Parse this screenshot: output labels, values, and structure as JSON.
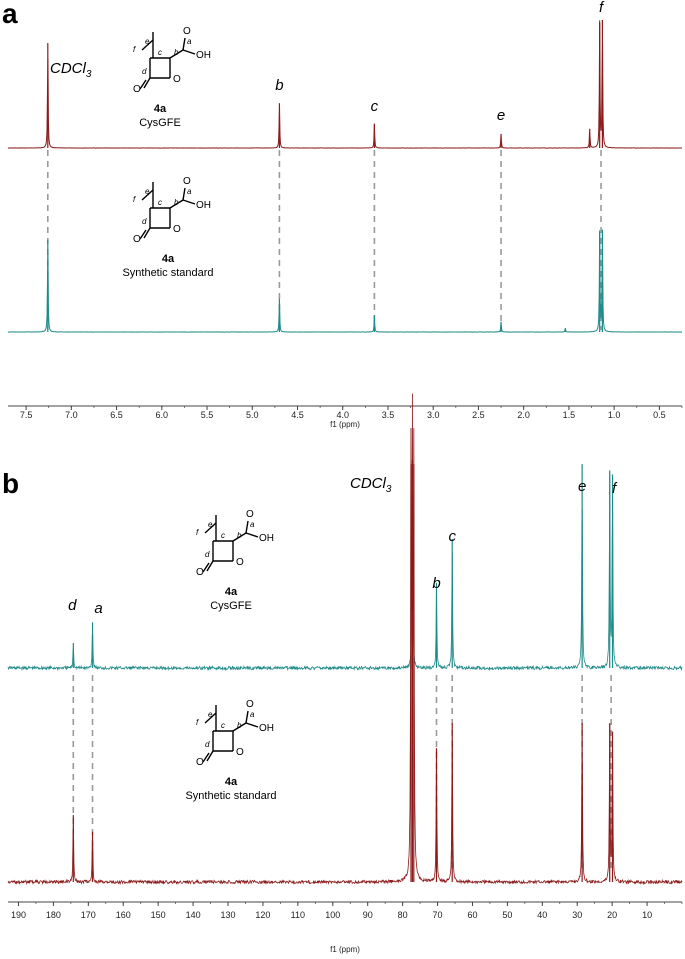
{
  "colors": {
    "top": "#8b1a1a",
    "bottom": "#1f8a8a",
    "guide": "#9a9a9a"
  },
  "chart_data": [
    {
      "panel": "a",
      "type": "line",
      "xlabel": "f1 (ppm)",
      "xlim": [
        7.7,
        0.25
      ],
      "x_ticks": [
        "7.5",
        "7.0",
        "6.5",
        "6.0",
        "5.5",
        "5.0",
        "4.5",
        "4.0",
        "3.5",
        "3.0",
        "2.5",
        "2.0",
        "1.5",
        "1.0",
        "0.5"
      ],
      "solvent_label": "CDCl",
      "solvent_subscript": "3",
      "series": [
        {
          "name": "CysGFE",
          "compound": "4a",
          "peaks": [
            {
              "ppm": 7.26,
              "height": 0.82
            },
            {
              "ppm": 4.7,
              "height": 0.35
            },
            {
              "ppm": 3.65,
              "height": 0.19
            },
            {
              "ppm": 2.25,
              "height": 0.11
            },
            {
              "ppm": 1.27,
              "height": 0.15
            },
            {
              "ppm": 1.16,
              "height": 0.98
            },
            {
              "ppm": 1.13,
              "height": 1.0
            }
          ]
        },
        {
          "name": "Synthetic standard",
          "compound": "4a",
          "peaks": [
            {
              "ppm": 7.26,
              "height": 0.72
            },
            {
              "ppm": 4.7,
              "height": 0.26
            },
            {
              "ppm": 3.65,
              "height": 0.13
            },
            {
              "ppm": 2.25,
              "height": 0.08
            },
            {
              "ppm": 1.54,
              "height": 0.03
            },
            {
              "ppm": 1.16,
              "height": 0.78
            },
            {
              "ppm": 1.13,
              "height": 0.8
            }
          ]
        }
      ],
      "annotations": [
        {
          "text": "b",
          "ppm": 4.7
        },
        {
          "text": "c",
          "ppm": 3.65
        },
        {
          "text": "e",
          "ppm": 2.25
        },
        {
          "text": "f",
          "ppm": 1.145
        }
      ]
    },
    {
      "panel": "b",
      "type": "line",
      "xlabel": "f1 (ppm)",
      "xlim": [
        193,
        0
      ],
      "x_ticks": [
        "190",
        "180",
        "170",
        "160",
        "150",
        "140",
        "130",
        "120",
        "110",
        "100",
        "90",
        "80",
        "70",
        "60",
        "50",
        "40",
        "30",
        "20",
        "10"
      ],
      "solvent_label": "CDCl",
      "solvent_subscript": "3",
      "series": [
        {
          "name": "CysGFE",
          "compound": "4a",
          "peaks": [
            {
              "ppm": 174.3,
              "height": 0.12
            },
            {
              "ppm": 168.8,
              "height": 0.22
            },
            {
              "ppm": 77.2,
              "height": 1.0
            },
            {
              "ppm": 70.3,
              "height": 0.41
            },
            {
              "ppm": 65.8,
              "height": 0.62
            },
            {
              "ppm": 28.6,
              "height": 0.98
            },
            {
              "ppm": 20.7,
              "height": 0.95
            },
            {
              "ppm": 19.9,
              "height": 0.93
            }
          ]
        },
        {
          "name": "Synthetic standard",
          "compound": "4a",
          "peaks": [
            {
              "ppm": 174.3,
              "height": 0.16
            },
            {
              "ppm": 168.8,
              "height": 0.12
            },
            {
              "ppm": 77.6,
              "height": 1.0
            },
            {
              "ppm": 77.2,
              "height": 1.0
            },
            {
              "ppm": 76.8,
              "height": 1.0
            },
            {
              "ppm": 70.3,
              "height": 0.32
            },
            {
              "ppm": 65.8,
              "height": 0.38
            },
            {
              "ppm": 28.6,
              "height": 0.38
            },
            {
              "ppm": 20.7,
              "height": 0.38
            },
            {
              "ppm": 19.9,
              "height": 0.36
            }
          ]
        }
      ],
      "annotations": [
        {
          "text": "d",
          "ppm": 174.3
        },
        {
          "text": "a",
          "ppm": 168.8
        },
        {
          "text": "b",
          "ppm": 70.3
        },
        {
          "text": "c",
          "ppm": 65.8
        },
        {
          "text": "e",
          "ppm": 28.6
        },
        {
          "text": "f",
          "ppm": 20.3
        }
      ]
    }
  ],
  "structure": {
    "compound": "4a",
    "captions": [
      "CysGFE",
      "Synthetic standard"
    ],
    "atoms": [
      "f",
      "e",
      "c",
      "b",
      "a",
      "d",
      "O",
      "OH",
      "O",
      "O"
    ]
  }
}
